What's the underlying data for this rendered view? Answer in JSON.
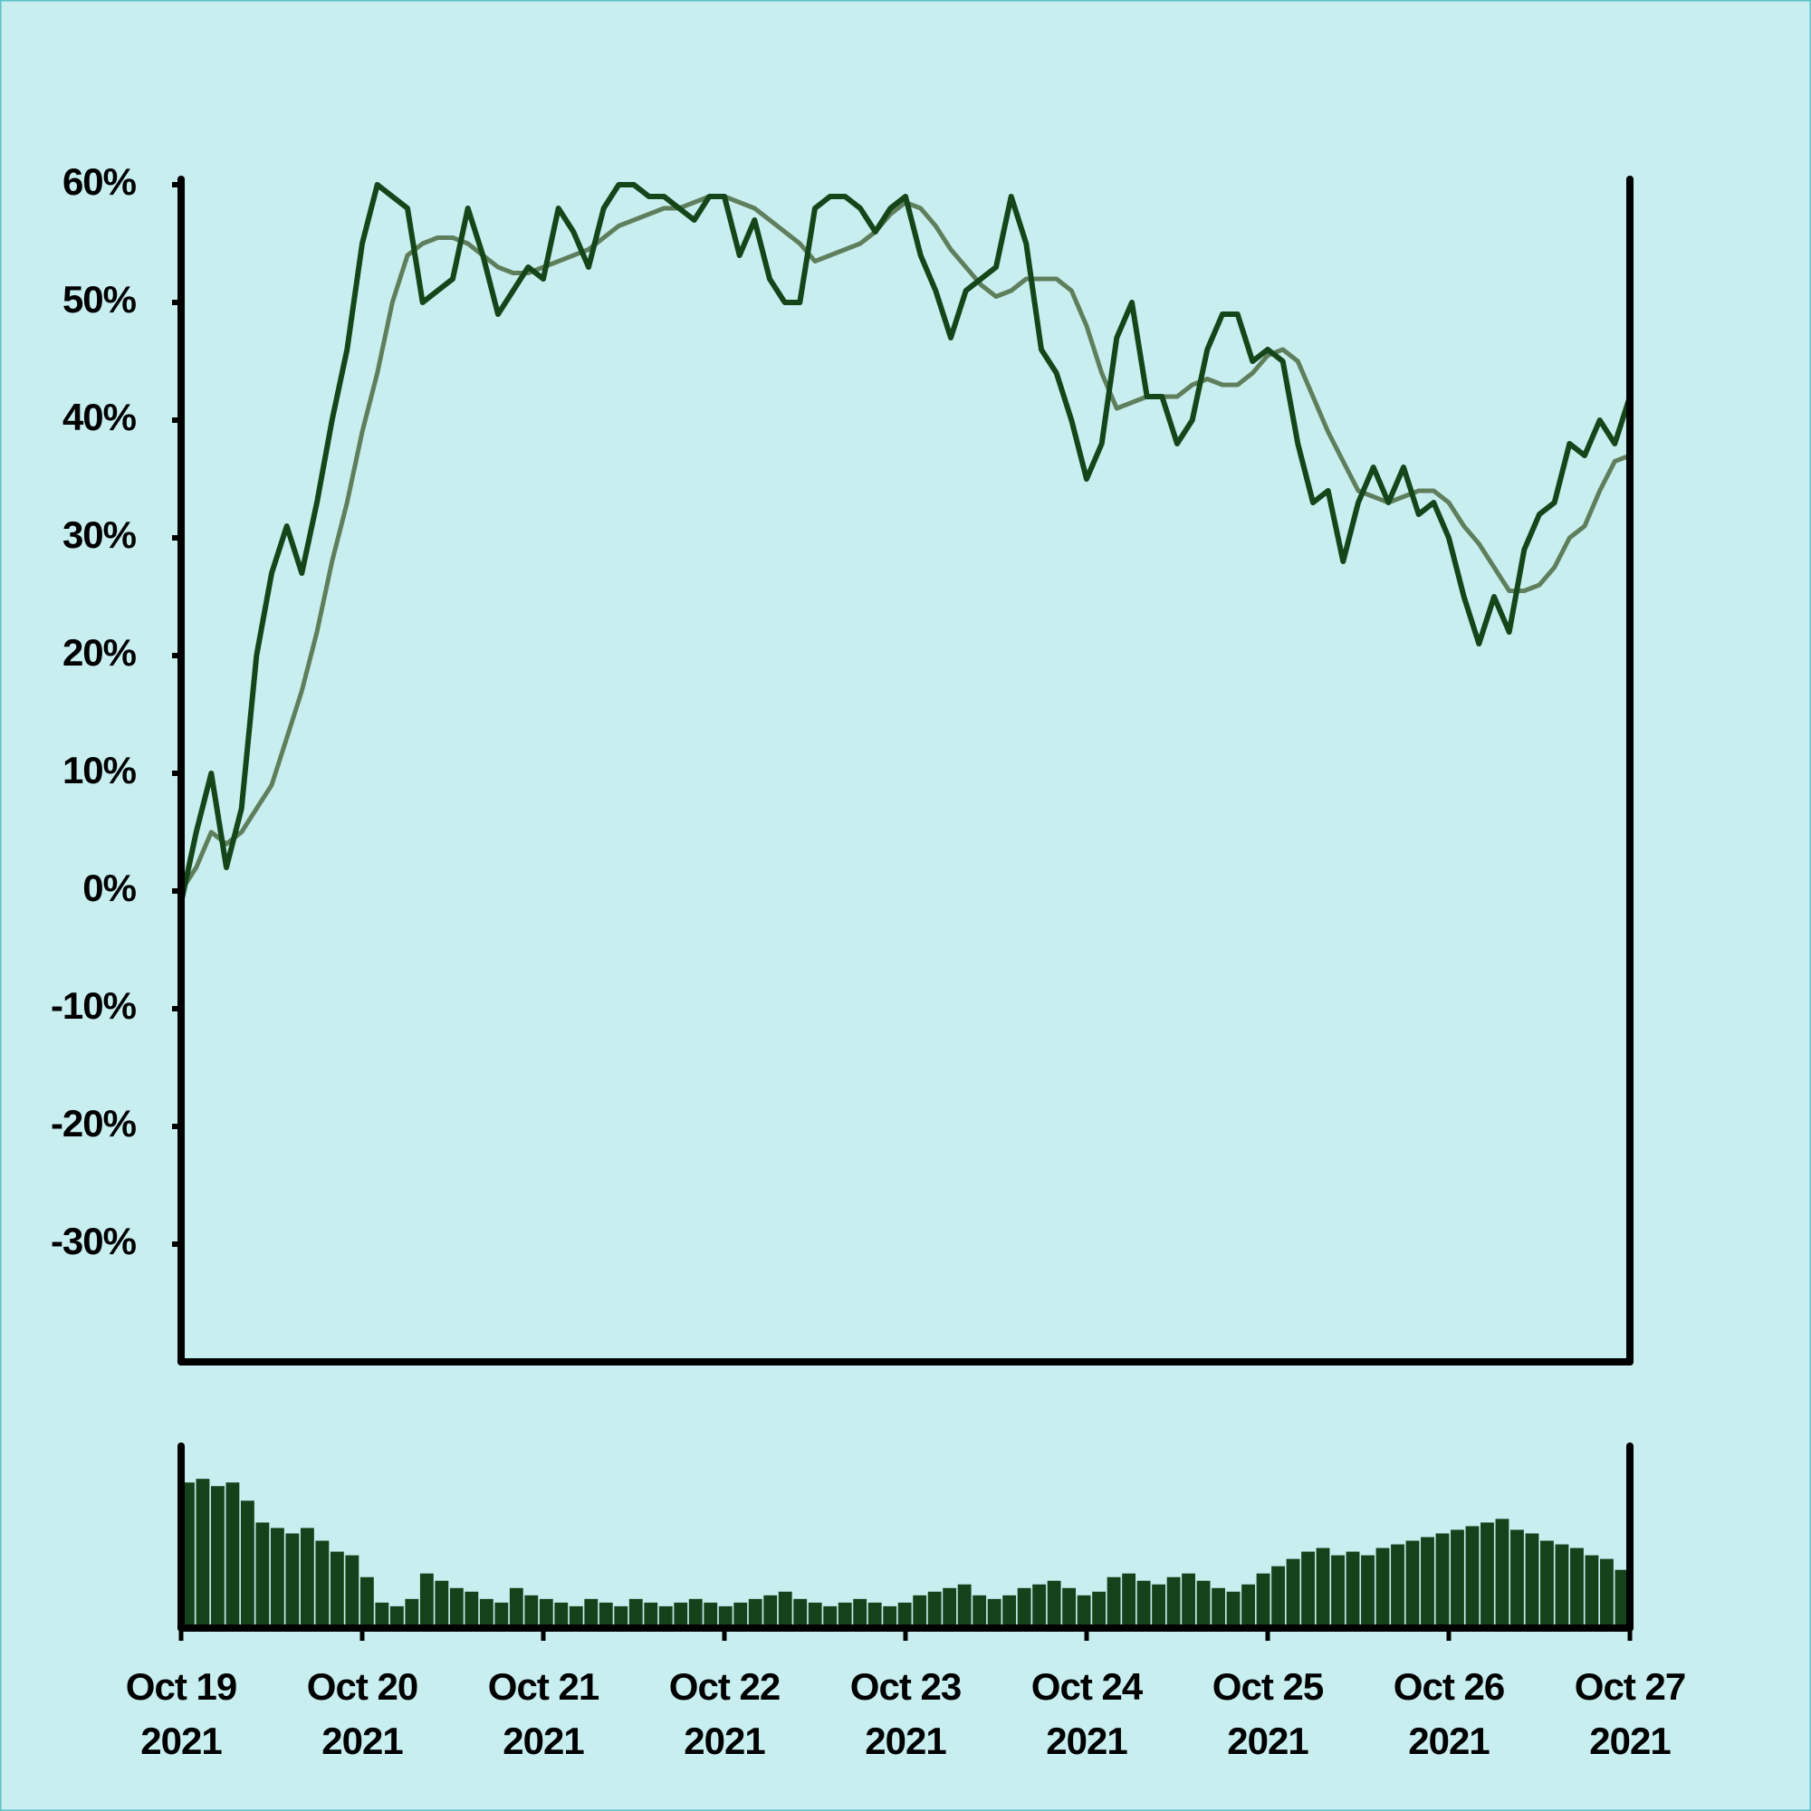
{
  "chart_data": {
    "type": "line",
    "ylim": [
      -40,
      60
    ],
    "yticks": [
      {
        "value": 60,
        "label": "60%"
      },
      {
        "value": 50,
        "label": "50%"
      },
      {
        "value": 40,
        "label": "40%"
      },
      {
        "value": 30,
        "label": "30%"
      },
      {
        "value": 20,
        "label": "20%"
      },
      {
        "value": 10,
        "label": "10%"
      },
      {
        "value": 0,
        "label": "0%"
      },
      {
        "value": -10,
        "label": "-10%"
      },
      {
        "value": -20,
        "label": "-20%"
      },
      {
        "value": -30,
        "label": "-30%"
      }
    ],
    "xticks": [
      {
        "value": "2021-10-19",
        "label": [
          "Oct 19",
          "2021"
        ]
      },
      {
        "value": "2021-10-20",
        "label": [
          "Oct 20",
          "2021"
        ]
      },
      {
        "value": "2021-10-21",
        "label": [
          "Oct 21",
          "2021"
        ]
      },
      {
        "value": "2021-10-22",
        "label": [
          "Oct 22",
          "2021"
        ]
      },
      {
        "value": "2021-10-23",
        "label": [
          "Oct 23",
          "2021"
        ]
      },
      {
        "value": "2021-10-24",
        "label": [
          "Oct 24",
          "2021"
        ]
      },
      {
        "value": "2021-10-25",
        "label": [
          "Oct 25",
          "2021"
        ]
      },
      {
        "value": "2021-10-26",
        "label": [
          "Oct 26",
          "2021"
        ]
      },
      {
        "value": "2021-10-27",
        "label": [
          "Oct 27",
          "2021"
        ]
      }
    ],
    "series": [
      {
        "color": "#14461a",
        "values": [
          -1,
          5,
          10,
          2,
          7,
          20,
          27,
          31,
          27,
          33,
          40,
          46,
          55,
          60,
          59,
          58,
          50,
          51,
          52,
          58,
          54,
          49,
          51,
          53,
          52,
          58,
          56,
          53,
          58,
          60,
          60,
          59,
          59,
          58,
          57,
          59,
          59,
          54,
          57,
          52,
          50,
          50,
          58,
          59,
          59,
          58,
          56,
          58,
          59,
          54,
          51,
          47,
          51,
          52,
          53,
          59,
          55,
          46,
          44,
          40,
          35,
          38,
          47,
          50,
          42,
          42,
          38,
          40,
          46,
          49,
          49,
          45,
          46,
          45,
          38,
          33,
          34,
          28,
          33,
          36,
          33,
          36,
          32,
          33,
          30,
          25,
          21,
          25,
          22,
          29,
          32,
          33,
          38,
          37,
          40,
          38,
          42
        ]
      },
      {
        "color": "#5f7f5c",
        "values": [
          0,
          2,
          5,
          4,
          5,
          7,
          9,
          13,
          17,
          22,
          28,
          33,
          39,
          44,
          50,
          54,
          55,
          55.5,
          55.5,
          55,
          54,
          53,
          52.5,
          52.5,
          53,
          53.5,
          54,
          54.5,
          55.5,
          56.5,
          57,
          57.5,
          58,
          58,
          58.5,
          59,
          59,
          58.5,
          58,
          57,
          56,
          55,
          53.5,
          54,
          54.5,
          55,
          56,
          57.5,
          58.5,
          58,
          56.5,
          54.5,
          53,
          51.5,
          50.5,
          51,
          52,
          52,
          52,
          51,
          48,
          44,
          41,
          41.5,
          42,
          42,
          42,
          43,
          43.5,
          43,
          43,
          44,
          45.5,
          46,
          45,
          42,
          39,
          36.5,
          34,
          33.5,
          33,
          33.5,
          34,
          34,
          33,
          31,
          29.5,
          27.5,
          25.5,
          25.5,
          26,
          27.5,
          30,
          31,
          34,
          36.5,
          37
        ]
      }
    ],
    "volume": {
      "color": "#14421a",
      "ylim": [
        0,
        100
      ],
      "values": [
        80,
        82,
        78,
        80,
        70,
        58,
        55,
        52,
        55,
        48,
        42,
        40,
        28,
        14,
        12,
        16,
        30,
        26,
        22,
        20,
        16,
        14,
        22,
        18,
        16,
        14,
        12,
        16,
        14,
        12,
        16,
        14,
        12,
        14,
        16,
        14,
        12,
        14,
        16,
        18,
        20,
        16,
        14,
        12,
        14,
        16,
        14,
        12,
        14,
        18,
        20,
        22,
        24,
        18,
        16,
        18,
        22,
        24,
        26,
        22,
        18,
        20,
        28,
        30,
        26,
        24,
        28,
        30,
        26,
        22,
        20,
        24,
        30,
        34,
        38,
        42,
        44,
        40,
        42,
        40,
        44,
        46,
        48,
        50,
        52,
        54,
        56,
        58,
        60,
        54,
        52,
        48,
        46,
        44,
        40,
        38,
        32
      ]
    }
  }
}
